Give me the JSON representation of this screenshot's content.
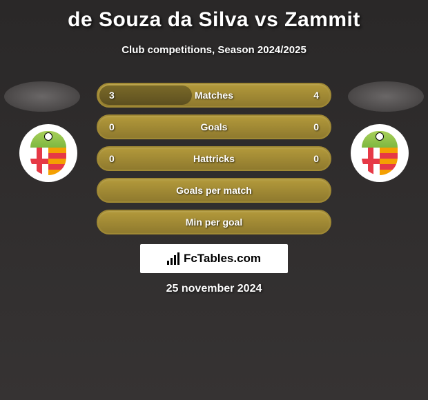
{
  "title": "de Souza da Silva vs Zammit",
  "subtitle": "Club competitions, Season 2024/2025",
  "colors": {
    "background_top": "#2a2828",
    "background_bottom": "#363333",
    "stat_border": "#a08934",
    "stat_fill_light": "#b39a3b",
    "stat_fill_dark": "#8f7a2e",
    "stat_bar_dark": "#7a6928",
    "text_white": "#ffffff",
    "badge_bg": "#ffffff",
    "shield_green": "#7db840",
    "shield_red": "#e63946",
    "shield_yellow": "#f4a002"
  },
  "stats": [
    {
      "label": "Matches",
      "left_value": "3",
      "right_value": "4",
      "left_bar_pct": 40,
      "right_bar_pct": 0
    },
    {
      "label": "Goals",
      "left_value": "0",
      "right_value": "0",
      "left_bar_pct": 0,
      "right_bar_pct": 0
    },
    {
      "label": "Hattricks",
      "left_value": "0",
      "right_value": "0",
      "left_bar_pct": 0,
      "right_bar_pct": 0
    },
    {
      "label": "Goals per match",
      "left_value": "",
      "right_value": "",
      "left_bar_pct": 0,
      "right_bar_pct": 0
    },
    {
      "label": "Min per goal",
      "left_value": "",
      "right_value": "",
      "left_bar_pct": 0,
      "right_bar_pct": 0
    }
  ],
  "branding": {
    "label": "FcTables.com",
    "icon_name": "bar-chart-icon"
  },
  "date": "25 november 2024",
  "badges": {
    "left": {
      "club": "Birkirkara FC"
    },
    "right": {
      "club": "Birkirkara FC"
    }
  }
}
